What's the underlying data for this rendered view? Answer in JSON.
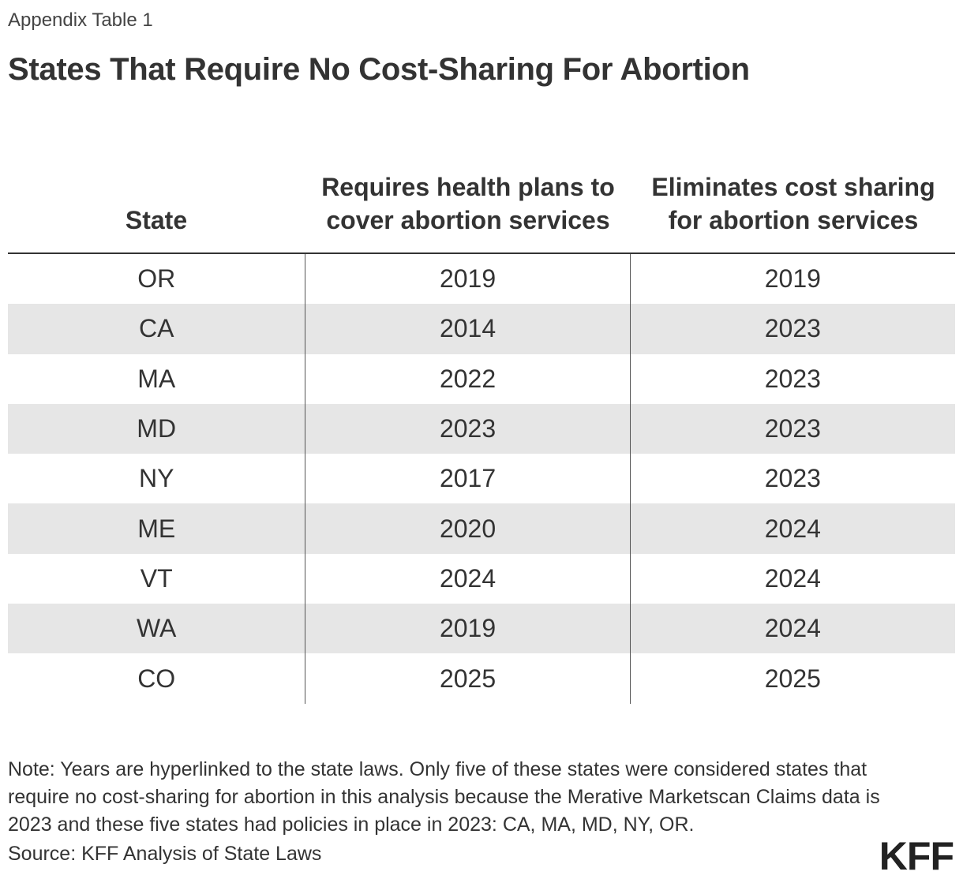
{
  "kicker": "Appendix Table 1",
  "title": "States That Require No Cost-Sharing For Abortion",
  "table": {
    "headers": {
      "state": "State",
      "requires_coverage": "Requires health plans to cover abortion services",
      "eliminates_cost_sharing": "Eliminates cost sharing for abortion services"
    },
    "rows": [
      {
        "state": "OR",
        "requires_coverage": "2019",
        "eliminates_cost_sharing": "2019"
      },
      {
        "state": "CA",
        "requires_coverage": "2014",
        "eliminates_cost_sharing": "2023"
      },
      {
        "state": "MA",
        "requires_coverage": "2022",
        "eliminates_cost_sharing": "2023"
      },
      {
        "state": "MD",
        "requires_coverage": "2023",
        "eliminates_cost_sharing": "2023"
      },
      {
        "state": "NY",
        "requires_coverage": "2017",
        "eliminates_cost_sharing": "2023"
      },
      {
        "state": "ME",
        "requires_coverage": "2020",
        "eliminates_cost_sharing": "2024"
      },
      {
        "state": "VT",
        "requires_coverage": "2024",
        "eliminates_cost_sharing": "2024"
      },
      {
        "state": "WA",
        "requires_coverage": "2019",
        "eliminates_cost_sharing": "2024"
      },
      {
        "state": "CO",
        "requires_coverage": "2025",
        "eliminates_cost_sharing": "2025"
      }
    ]
  },
  "note": "Note: Years are hyperlinked to the state laws. Only five of these states were considered states that require no cost-sharing for abortion in this analysis because the Merative Marketscan Claims data is 2023 and these five states had policies in place in 2023: CA, MA, MD, NY, OR.",
  "source": "Source: KFF Analysis of State Laws",
  "logo": "KFF"
}
